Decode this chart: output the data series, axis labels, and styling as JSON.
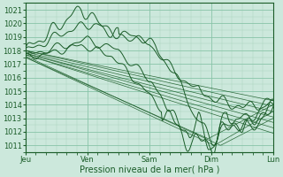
{
  "bg_color": "#cce8dc",
  "grid_major_color": "#88c4a8",
  "grid_minor_color": "#aad4bc",
  "line_color": "#1a5c28",
  "ylabel": "Pression niveau de la mer( hPa )",
  "ylim": [
    1010.5,
    1021.5
  ],
  "yticks": [
    1011,
    1012,
    1013,
    1014,
    1015,
    1016,
    1017,
    1018,
    1019,
    1020,
    1021
  ],
  "xlim": [
    0.0,
    4.0
  ],
  "xtick_positions": [
    0.0,
    1.0,
    2.0,
    3.0,
    4.0
  ],
  "xtick_labels": [
    "Jeu",
    "Ven",
    "Sam",
    "Dim",
    "Lun"
  ],
  "label_fontsize": 7,
  "tick_fontsize": 6
}
